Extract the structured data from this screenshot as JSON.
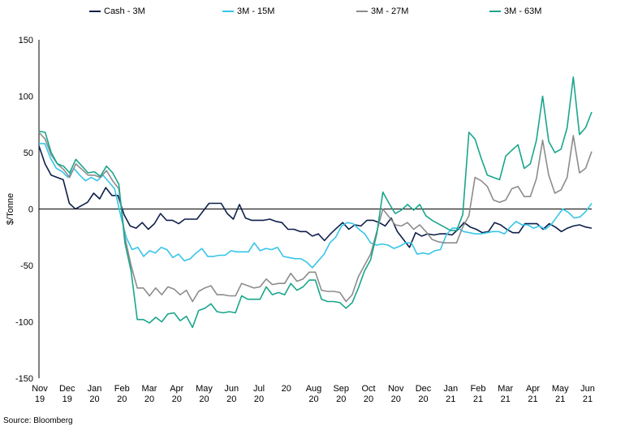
{
  "chart_data": {
    "type": "line",
    "ylabel": "$/Tonne",
    "ylim": [
      -150,
      150
    ],
    "yticks": [
      -150,
      -100,
      -50,
      0,
      50,
      100,
      150
    ],
    "xlabels": [
      [
        "Nov",
        "19"
      ],
      [
        "Dec",
        "19"
      ],
      [
        "Jan",
        "20"
      ],
      [
        "Feb",
        "20"
      ],
      [
        "Mar",
        "20"
      ],
      [
        "Apr",
        "20"
      ],
      [
        "May",
        "20"
      ],
      [
        "Jun",
        "20"
      ],
      [
        "Jul",
        "20"
      ],
      [
        "20",
        ""
      ],
      [
        "Aug",
        "20"
      ],
      [
        "Sep",
        "20"
      ],
      [
        "Oct",
        "20"
      ],
      [
        "Nov",
        "20"
      ],
      [
        "Dec",
        "20"
      ],
      [
        "Jan",
        "21"
      ],
      [
        "Feb",
        "21"
      ],
      [
        "Mar",
        "21"
      ],
      [
        "Apr",
        "21"
      ],
      [
        "May",
        "21"
      ],
      [
        "Jun",
        "21"
      ]
    ],
    "series": [
      {
        "name": "Cash - 3M",
        "color": "#0d1f4a",
        "values": [
          56,
          40,
          30,
          28,
          26,
          5,
          0,
          3,
          6,
          14,
          9,
          19,
          12,
          12,
          -5,
          -15,
          -17,
          -12,
          -18,
          -13,
          -4,
          -10,
          -10,
          -13,
          -9,
          -9,
          -9,
          -2,
          5,
          5,
          5,
          -4,
          -9,
          4,
          -8,
          -10,
          -10,
          -10,
          -9,
          -11,
          -12,
          -18,
          -18,
          -20,
          -20,
          -24,
          -22,
          -28,
          -22,
          -17,
          -12,
          -18,
          -14,
          -15,
          -10,
          -10,
          -12,
          -15,
          -8,
          -20,
          -27,
          -34,
          -21,
          -24,
          -22,
          -23,
          -22,
          -22,
          -23,
          -18,
          -12,
          -16,
          -18,
          -21,
          -20,
          -12,
          -14,
          -18,
          -21,
          -21,
          -13,
          -13,
          -13,
          -18,
          -13,
          -16,
          -20,
          -17,
          -15,
          -14,
          -16,
          -17
        ]
      },
      {
        "name": "3M - 15M",
        "color": "#36c5e8",
        "values": [
          58,
          58,
          45,
          36,
          33,
          28,
          36,
          30,
          25,
          28,
          25,
          30,
          24,
          18,
          -5,
          -25,
          -36,
          -34,
          -42,
          -37,
          -39,
          -34,
          -36,
          -43,
          -40,
          -46,
          -44,
          -39,
          -35,
          -42,
          -42,
          -41,
          -41,
          -37,
          -38,
          -38,
          -38,
          -30,
          -37,
          -35,
          -36,
          -34,
          -42,
          -43,
          -44,
          -44,
          -47,
          -52,
          -46,
          -40,
          -30,
          -25,
          -15,
          -12,
          -13,
          -18,
          -22,
          -30,
          -32,
          -31,
          -32,
          -35,
          -33,
          -30,
          -30,
          -40,
          -39,
          -40,
          -37,
          -36,
          -23,
          -17,
          -17,
          -20,
          -21,
          -22,
          -22,
          -21,
          -20,
          -20,
          -22,
          -16,
          -11,
          -14,
          -14,
          -17,
          -15,
          -18,
          -14,
          -7,
          0,
          -3,
          -8,
          -7,
          -2,
          5
        ]
      },
      {
        "name": "3M - 27M",
        "color": "#8c8c8c",
        "values": [
          68,
          62,
          48,
          40,
          35,
          28,
          40,
          35,
          30,
          30,
          28,
          34,
          25,
          18,
          -25,
          -50,
          -70,
          -70,
          -77,
          -70,
          -76,
          -69,
          -71,
          -76,
          -72,
          -82,
          -73,
          -70,
          -68,
          -76,
          -76,
          -77,
          -77,
          -66,
          -68,
          -70,
          -69,
          -62,
          -67,
          -66,
          -66,
          -57,
          -64,
          -62,
          -56,
          -56,
          -72,
          -73,
          -73,
          -74,
          -82,
          -76,
          -60,
          -50,
          -40,
          -20,
          0,
          -7,
          -14,
          -15,
          -12,
          -18,
          -14,
          -20,
          -27,
          -29,
          -30,
          -30,
          -30,
          -16,
          -6,
          28,
          25,
          20,
          8,
          6,
          8,
          18,
          20,
          11,
          11,
          27,
          61,
          30,
          14,
          17,
          28,
          65,
          32,
          36,
          51
        ]
      },
      {
        "name": "3M - 63M",
        "color": "#1aa58c",
        "values": [
          69,
          68,
          50,
          40,
          38,
          32,
          44,
          38,
          32,
          33,
          29,
          38,
          32,
          22,
          -30,
          -55,
          -98,
          -98,
          -101,
          -96,
          -100,
          -93,
          -92,
          -99,
          -95,
          -105,
          -90,
          -88,
          -84,
          -91,
          -92,
          -91,
          -92,
          -77,
          -80,
          -80,
          -80,
          -69,
          -76,
          -74,
          -76,
          -66,
          -72,
          -69,
          -63,
          -63,
          -80,
          -82,
          -82,
          -83,
          -88,
          -83,
          -70,
          -55,
          -45,
          -22,
          15,
          5,
          -4,
          -1,
          4,
          -1,
          4,
          -6,
          -10,
          -13,
          -16,
          -19,
          -19,
          -5,
          68,
          62,
          45,
          30,
          28,
          26,
          47,
          52,
          57,
          36,
          40,
          61,
          100,
          60,
          50,
          53,
          72,
          117,
          66,
          72,
          86
        ]
      }
    ],
    "source": "Source: Bloomberg"
  }
}
